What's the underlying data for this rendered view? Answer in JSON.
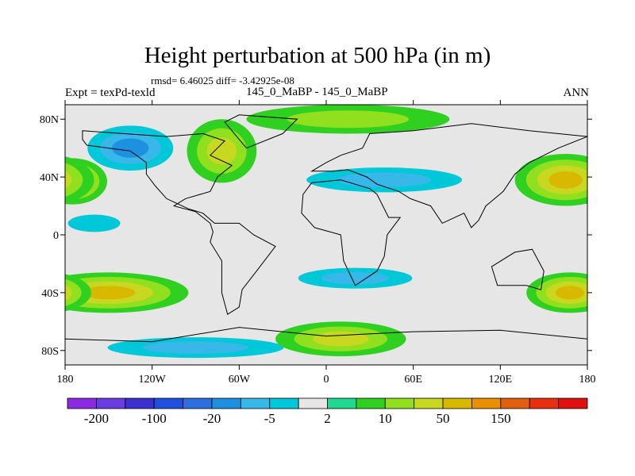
{
  "chart_data": {
    "type": "heatmap",
    "title": "Height perturbation at 500 hPa (in m)",
    "stats": "rmsd= 6.46025 diff= -3.42925e-08",
    "experiment": "Expt = texPd-texld",
    "subtitle": "145_0_MaBP - 145_0_MaBP",
    "season": "ANN",
    "xlim": [
      -180,
      180
    ],
    "ylim": [
      -90,
      90
    ],
    "x_ticks": [
      {
        "value": -180,
        "label": "180"
      },
      {
        "value": -120,
        "label": "120W"
      },
      {
        "value": -60,
        "label": "60W"
      },
      {
        "value": 0,
        "label": "0"
      },
      {
        "value": 60,
        "label": "60E"
      },
      {
        "value": 120,
        "label": "120E"
      },
      {
        "value": 180,
        "label": "180"
      }
    ],
    "y_ticks": [
      {
        "value": 80,
        "label": "80N"
      },
      {
        "value": 40,
        "label": "40N"
      },
      {
        "value": 0,
        "label": "0"
      },
      {
        "value": -40,
        "label": "40S"
      },
      {
        "value": -80,
        "label": "80S"
      }
    ],
    "colorbar": {
      "colors": [
        "#8a2be2",
        "#6a3de0",
        "#3b2fd0",
        "#2050e0",
        "#2e6fe0",
        "#1e90e0",
        "#38b8e8",
        "#00c8d8",
        "#e6e6e6",
        "#20d890",
        "#30d020",
        "#90e020",
        "#c8d820",
        "#d8b800",
        "#e89000",
        "#e06010",
        "#e83010",
        "#e01010"
      ],
      "labels": [
        {
          "after": 1,
          "text": "-200"
        },
        {
          "after": 3,
          "text": "-100"
        },
        {
          "after": 5,
          "text": "-20"
        },
        {
          "after": 7,
          "text": "-5"
        },
        {
          "after": 9,
          "text": "2"
        },
        {
          "after": 11,
          "text": "10"
        },
        {
          "after": 13,
          "text": "50"
        },
        {
          "after": 15,
          "text": "150"
        }
      ]
    },
    "features": [
      {
        "name": "north-pacific-low",
        "lon": -135,
        "lat": 60,
        "rlon": 38,
        "rlat": 20,
        "level": -40
      },
      {
        "name": "north-america-high",
        "lon": -72,
        "lat": 58,
        "rlon": 24,
        "rlat": 22,
        "level": 25
      },
      {
        "name": "north-pacific-high-west",
        "lon": -175,
        "lat": 37,
        "rlon": 24,
        "rlat": 16,
        "level": 40
      },
      {
        "name": "north-pacific-high-east",
        "lon": 165,
        "lat": 38,
        "rlon": 35,
        "rlat": 18,
        "level": 45
      },
      {
        "name": "eurasia-trough",
        "lon": 40,
        "lat": 38,
        "rlon": 75,
        "rlat": 12,
        "level": -15
      },
      {
        "name": "arctic-ridge",
        "lon": 15,
        "lat": 80,
        "rlon": 70,
        "rlat": 10,
        "level": 8
      },
      {
        "name": "tropical-central-pacific",
        "lon": -160,
        "lat": 8,
        "rlon": 30,
        "rlat": 10,
        "level": -8
      },
      {
        "name": "south-pacific-high",
        "lon": -150,
        "lat": -40,
        "rlon": 55,
        "rlat": 14,
        "level": 30
      },
      {
        "name": "south-indian-high",
        "lon": 168,
        "lat": -40,
        "rlon": 30,
        "rlat": 14,
        "level": 45
      },
      {
        "name": "southern-ocean-trough",
        "lon": -90,
        "lat": -78,
        "rlon": 85,
        "rlat": 10,
        "level": -20
      },
      {
        "name": "south-atlantic-trough",
        "lon": 20,
        "lat": -30,
        "rlon": 55,
        "rlat": 10,
        "level": -20
      },
      {
        "name": "antarctic-high",
        "lon": 10,
        "lat": -72,
        "rlon": 45,
        "rlat": 12,
        "level": 25
      }
    ]
  }
}
